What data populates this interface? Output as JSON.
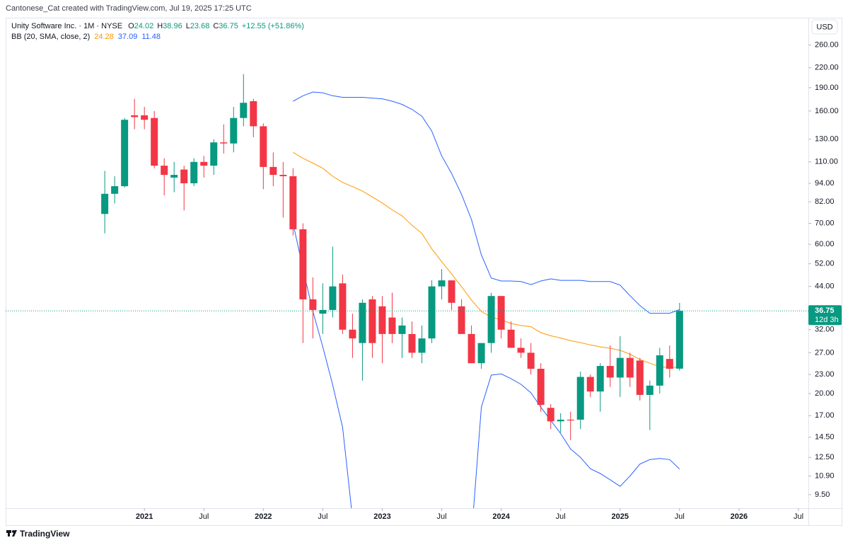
{
  "header": "Cantonese_Cat created with TradingView.com, Jul 19, 2025 17:25 UTC",
  "brand": "TradingView",
  "currency": "USD",
  "chart_data": {
    "type": "candlestick",
    "title": "Unity Software Inc. · 1M · NYSE",
    "legend_keys": [
      "O",
      "H",
      "L",
      "C"
    ],
    "change": "+12.55 (+51.86%)",
    "countdown": "12d 3h",
    "up_color": "#089981",
    "down_color": "#f23645",
    "log_scale": true,
    "x": [
      "2020-09",
      "2020-10",
      "2020-11",
      "2020-12",
      "2021-01",
      "2021-02",
      "2021-03",
      "2021-04",
      "2021-05",
      "2021-06",
      "2021-07",
      "2021-08",
      "2021-09",
      "2021-10",
      "2021-11",
      "2021-12",
      "2022-01",
      "2022-02",
      "2022-03",
      "2022-04",
      "2022-05",
      "2022-06",
      "2022-07",
      "2022-08",
      "2022-09",
      "2022-10",
      "2022-11",
      "2022-12",
      "2023-01",
      "2023-02",
      "2023-03",
      "2023-04",
      "2023-05",
      "2023-06",
      "2023-07",
      "2023-08",
      "2023-09",
      "2023-10",
      "2023-11",
      "2023-12",
      "2024-01",
      "2024-02",
      "2024-03",
      "2024-04",
      "2024-05",
      "2024-06",
      "2024-07",
      "2024-08",
      "2024-09",
      "2024-10",
      "2024-11",
      "2024-12",
      "2025-01",
      "2025-02",
      "2025-03",
      "2025-04",
      "2025-05",
      "2025-06",
      "2025-07"
    ],
    "open": [
      75,
      87,
      92,
      155,
      155,
      152,
      107,
      98,
      104,
      94,
      110,
      107,
      127,
      126,
      152,
      172,
      143,
      106,
      100,
      99,
      67,
      40,
      36,
      37,
      45,
      32,
      29,
      40,
      38,
      35,
      31,
      31,
      27,
      30,
      44,
      46,
      38,
      31,
      25,
      29,
      41,
      32,
      28,
      27,
      24,
      18,
      16.3,
      16.5,
      16.5,
      22.6,
      20.3,
      24.5,
      22.5,
      26,
      25.5,
      19.8,
      21.2,
      25.8,
      24.02
    ],
    "high": [
      103,
      99,
      152,
      175,
      165,
      160,
      113,
      110,
      107,
      113,
      115,
      130,
      145,
      165,
      210,
      175,
      146,
      118,
      110,
      105,
      70,
      47,
      45,
      59,
      48,
      36,
      40,
      41,
      41,
      42,
      35,
      34,
      33,
      46,
      50,
      46,
      40,
      33,
      29,
      42,
      41,
      34,
      30,
      29,
      25,
      18.5,
      17.3,
      17.5,
      23.5,
      23,
      25,
      28.5,
      30.5,
      27,
      26,
      22,
      28,
      28.5,
      38.96
    ],
    "low": [
      65,
      81,
      91,
      140,
      140,
      105,
      86,
      88,
      77,
      92,
      98,
      100,
      117,
      118,
      143,
      132,
      90,
      92,
      73,
      64,
      29,
      30,
      31,
      35,
      31,
      26,
      22,
      26,
      25,
      29,
      26,
      26,
      25,
      29,
      40,
      37,
      31,
      25,
      24,
      27,
      30,
      28,
      26,
      23,
      17.5,
      15.4,
      15,
      14.2,
      15.4,
      19.5,
      17.5,
      21,
      19.5,
      21,
      19,
      15.3,
      20,
      22.5,
      23.68
    ],
    "close": [
      87,
      92,
      150,
      153,
      150,
      107,
      100,
      100,
      94,
      110,
      107,
      127,
      126,
      152,
      170,
      143,
      106,
      100,
      99,
      67,
      40,
      37,
      37,
      44,
      32,
      30,
      39,
      29,
      31,
      31,
      33,
      27,
      30,
      44,
      46,
      39,
      31,
      25,
      29,
      41,
      32,
      28,
      27,
      24,
      18.4,
      16.3,
      16.5,
      16.4,
      22.6,
      20.3,
      24.5,
      22.5,
      26,
      22.5,
      19.8,
      21.2,
      26.5,
      24,
      36.75
    ],
    "indicator": {
      "name": "BB (20, SMA, close, 2)",
      "lines": [
        {
          "color": "#ff9800",
          "values": [
            null,
            null,
            null,
            null,
            null,
            null,
            null,
            null,
            null,
            null,
            null,
            null,
            null,
            null,
            null,
            null,
            null,
            null,
            null,
            118,
            113,
            109,
            105,
            99,
            94.6,
            91.7,
            88.8,
            85,
            81.3,
            77.3,
            74,
            69,
            65,
            58,
            52.8,
            48.2,
            43.9,
            39.8,
            36.6,
            35.1,
            34.4,
            33.5,
            33,
            32.7,
            31.3,
            30.6,
            30.1,
            29.5,
            29.1,
            28.6,
            28.2,
            27.9,
            27.5,
            26.7,
            25.7,
            25,
            24.4,
            24.2,
            24.28
          ]
        },
        {
          "color": "#2962ff",
          "values": [
            null,
            null,
            null,
            null,
            null,
            null,
            null,
            null,
            null,
            null,
            null,
            null,
            null,
            null,
            null,
            null,
            null,
            null,
            null,
            172,
            179,
            184,
            183,
            179,
            177,
            177,
            177,
            176,
            175,
            172,
            168,
            162,
            154,
            138,
            115,
            101,
            86.6,
            72,
            55.5,
            46.8,
            45.8,
            45.8,
            45.6,
            44.6,
            45.8,
            46.5,
            46,
            46,
            46,
            45.6,
            45.6,
            45.6,
            44.4,
            41.1,
            38.2,
            36.1,
            36.1,
            36.1,
            37.09
          ]
        },
        {
          "color": "#2962ff",
          "values": [
            null,
            null,
            null,
            null,
            null,
            null,
            null,
            null,
            null,
            null,
            null,
            null,
            null,
            null,
            null,
            null,
            null,
            null,
            null,
            70,
            50,
            36.6,
            28.2,
            21.3,
            15.6,
            8,
            null,
            null,
            null,
            null,
            null,
            null,
            null,
            null,
            null,
            null,
            null,
            7,
            18.1,
            22.9,
            23.1,
            22.3,
            21.4,
            20.1,
            18.1,
            16.4,
            14.9,
            13.3,
            12.5,
            11.5,
            11.1,
            10.6,
            10.1,
            10.9,
            11.9,
            12.3,
            12.4,
            12.3,
            11.48
          ]
        }
      ]
    },
    "xlim": [
      "2019-11",
      "2026-08"
    ],
    "xticks": [
      {
        "value": "2021-01",
        "label": "2021"
      },
      {
        "value": "2021-07",
        "label": "Jul"
      },
      {
        "value": "2022-01",
        "label": "2022"
      },
      {
        "value": "2022-07",
        "label": "Jul"
      },
      {
        "value": "2023-01",
        "label": "2023"
      },
      {
        "value": "2023-07",
        "label": "Jul"
      },
      {
        "value": "2024-01",
        "label": "2024"
      },
      {
        "value": "2024-07",
        "label": "Jul"
      },
      {
        "value": "2025-01",
        "label": "2025"
      },
      {
        "value": "2025-07",
        "label": "Jul"
      },
      {
        "value": "2026-01",
        "label": "2026"
      },
      {
        "value": "2026-07",
        "label": "Jul"
      }
    ],
    "ylim": [
      8.6,
      318
    ],
    "yticks": [
      {
        "value": 260,
        "label": "260.00"
      },
      {
        "value": 220,
        "label": "220.00"
      },
      {
        "value": 190,
        "label": "190.00"
      },
      {
        "value": 160,
        "label": "160.00"
      },
      {
        "value": 130,
        "label": "130.00"
      },
      {
        "value": 110,
        "label": "110.00"
      },
      {
        "value": 94,
        "label": "94.00"
      },
      {
        "value": 82,
        "label": "82.00"
      },
      {
        "value": 70,
        "label": "70.00"
      },
      {
        "value": 60,
        "label": "60.00"
      },
      {
        "value": 52,
        "label": "52.00"
      },
      {
        "value": 44,
        "label": "44.00"
      },
      {
        "value": 32,
        "label": "32.00"
      },
      {
        "value": 27,
        "label": "27.00"
      },
      {
        "value": 23,
        "label": "23.00"
      },
      {
        "value": 20,
        "label": "20.00"
      },
      {
        "value": 17,
        "label": "17.00"
      },
      {
        "value": 14.5,
        "label": "14.50"
      },
      {
        "value": 12.5,
        "label": "12.50"
      },
      {
        "value": 10.9,
        "label": "10.90"
      },
      {
        "value": 9.5,
        "label": "9.50"
      }
    ]
  }
}
